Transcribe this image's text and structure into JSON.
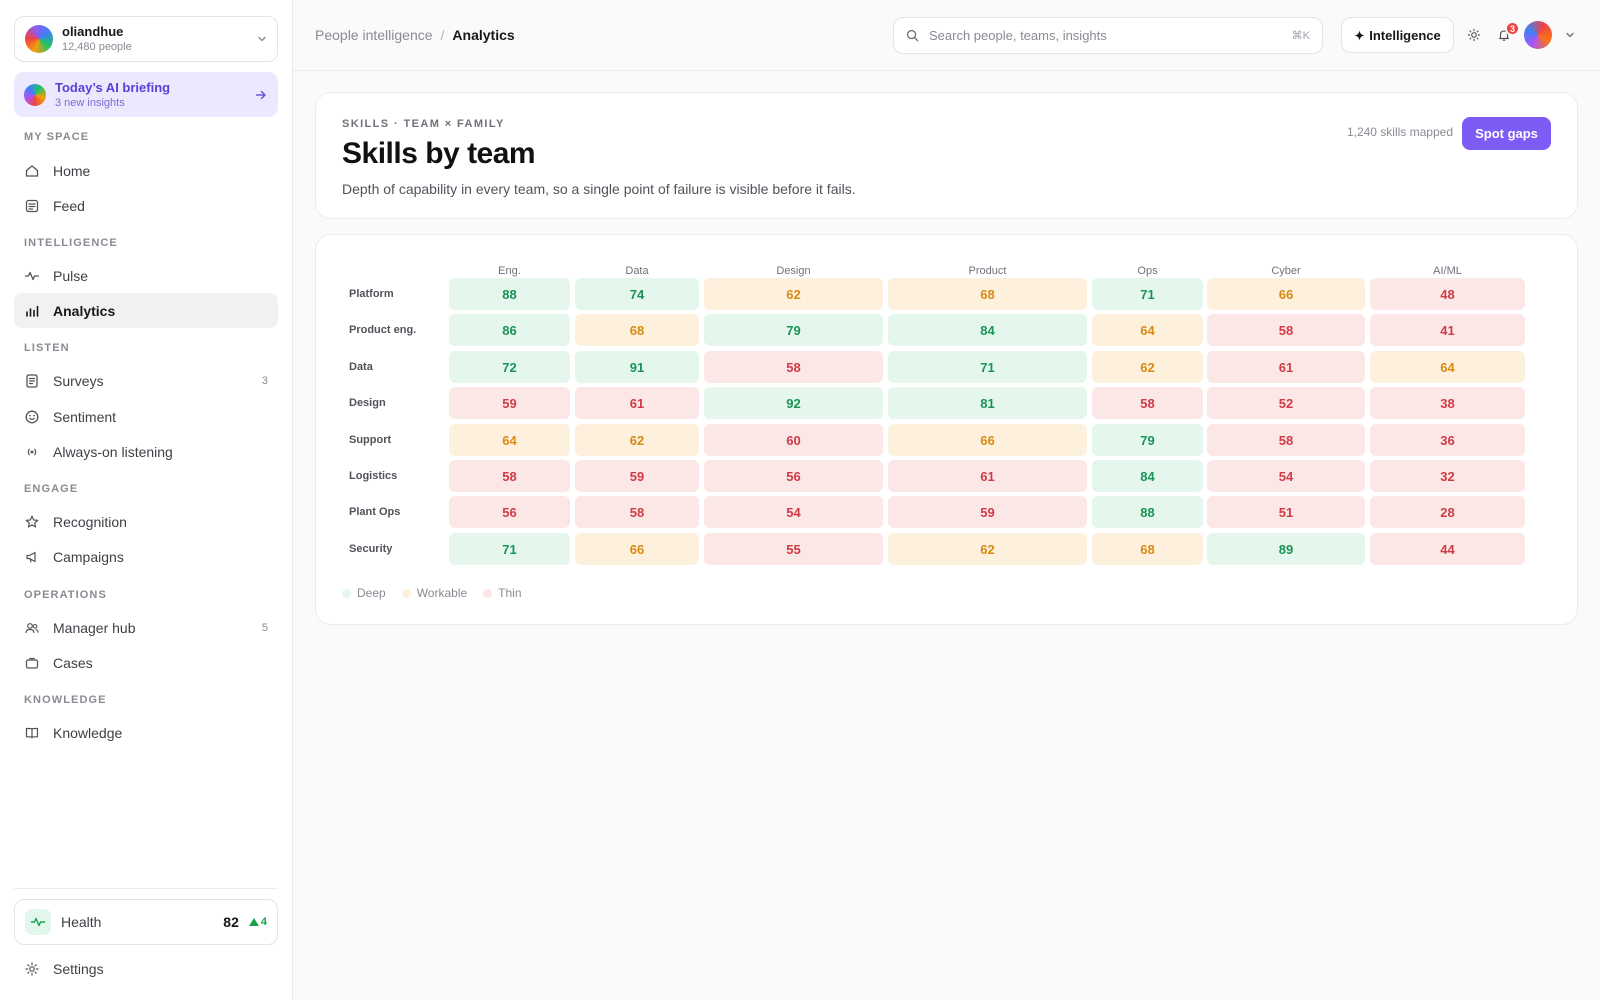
{
  "org": {
    "name": "oliandhue",
    "people": "12,480 people"
  },
  "briefing": {
    "title": "Today’s AI briefing",
    "subtitle": "3 new insights"
  },
  "nav": {
    "sections": [
      "MY SPACE",
      "INTELLIGENCE",
      "LISTEN",
      "ENGAGE",
      "OPERATIONS",
      "KNOWLEDGE"
    ],
    "items": [
      {
        "label": "Home",
        "icon": "home-icon"
      },
      {
        "label": "Feed",
        "icon": "feed-icon"
      },
      {
        "label": "Pulse",
        "icon": "pulse-icon"
      },
      {
        "label": "Analytics",
        "icon": "bar-chart-icon",
        "active": true
      },
      {
        "label": "Surveys",
        "icon": "survey-icon",
        "count": "3"
      },
      {
        "label": "Sentiment",
        "icon": "smile-icon"
      },
      {
        "label": "Always-on listening",
        "icon": "broadcast-icon"
      },
      {
        "label": "Recognition",
        "icon": "star-icon"
      },
      {
        "label": "Campaigns",
        "icon": "megaphone-icon"
      },
      {
        "label": "Manager hub",
        "icon": "users-icon",
        "count": "5"
      },
      {
        "label": "Cases",
        "icon": "briefcase-icon"
      },
      {
        "label": "Knowledge",
        "icon": "book-icon"
      }
    ]
  },
  "health": {
    "label": "Health",
    "score": "82",
    "delta": "4"
  },
  "settings": {
    "label": "Settings"
  },
  "topbar": {
    "breadcrumb_root": "People intelligence",
    "breadcrumb_sep": "/",
    "breadcrumb_current": "Analytics",
    "search_placeholder": "Search people, teams, insights",
    "search_shortcut": "⌘K",
    "intelligence_label": "Intelligence",
    "notification_count": "3"
  },
  "header": {
    "eyebrow": "SKILLS · TEAM × FAMILY",
    "title": "Skills by team",
    "description": "Depth of capability in every team, so a single point of failure is visible before it fails.",
    "skills_mapped": "1,240 skills mapped",
    "cta_label": "Spot gaps"
  },
  "heatmap": {
    "columns": [
      "Eng.",
      "Data",
      "Design",
      "Product",
      "Ops",
      "Cyber",
      "AI/ML"
    ],
    "rows": [
      {
        "team": "Platform",
        "values": [
          88,
          74,
          62,
          68,
          71,
          66,
          48
        ]
      },
      {
        "team": "Product eng.",
        "values": [
          86,
          68,
          79,
          84,
          64,
          58,
          41
        ]
      },
      {
        "team": "Data",
        "values": [
          72,
          91,
          58,
          71,
          62,
          61,
          64
        ]
      },
      {
        "team": "Design",
        "values": [
          59,
          61,
          92,
          81,
          58,
          52,
          38
        ]
      },
      {
        "team": "Support",
        "values": [
          64,
          62,
          60,
          66,
          79,
          58,
          36
        ]
      },
      {
        "team": "Logistics",
        "values": [
          58,
          59,
          56,
          61,
          84,
          54,
          32
        ]
      },
      {
        "team": "Plant Ops",
        "values": [
          56,
          58,
          54,
          59,
          88,
          51,
          28
        ]
      },
      {
        "team": "Security",
        "values": [
          71,
          66,
          55,
          62,
          68,
          89,
          44
        ]
      }
    ],
    "legend": [
      "Deep",
      "Workable",
      "Thin"
    ],
    "colors": {
      "deep": "#e5f6ec",
      "workable": "#fdf1de",
      "thin": "#fce7e7"
    }
  }
}
